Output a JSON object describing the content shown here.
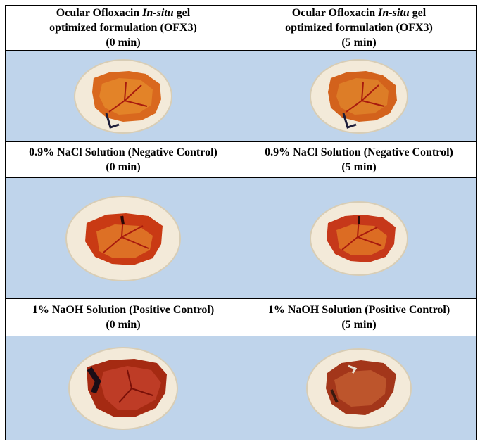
{
  "rows": [
    {
      "left": {
        "line1_pre": "Ocular Ofloxacin ",
        "line1_italic": "In-situ",
        "line1_post": " gel",
        "line2": "optimized formulation (OFX3)",
        "line3": "(0 min)"
      },
      "right": {
        "line1_pre": "Ocular Ofloxacin ",
        "line1_italic": "In-situ",
        "line1_post": " gel",
        "line2": "optimized formulation (OFX3)",
        "line3": "(5 min)"
      }
    },
    {
      "left": {
        "line1": "0.9% NaCl Solution (Negative Control)",
        "line2": "(0 min)"
      },
      "right": {
        "line1": "0.9% NaCl Solution (Negative Control)",
        "line2": "(5 min)"
      }
    },
    {
      "left": {
        "line1": "1% NaOH Solution (Positive Control)",
        "line2": "(0 min)"
      },
      "right": {
        "line1": "1% NaOH Solution (Positive Control)",
        "line2": "(5 min)"
      }
    }
  ],
  "colors": {
    "image_background": "#bfd4eb",
    "eggshell": "#f3ead9",
    "membrane": "#d94a1c",
    "vessel": "#a81a0e"
  }
}
